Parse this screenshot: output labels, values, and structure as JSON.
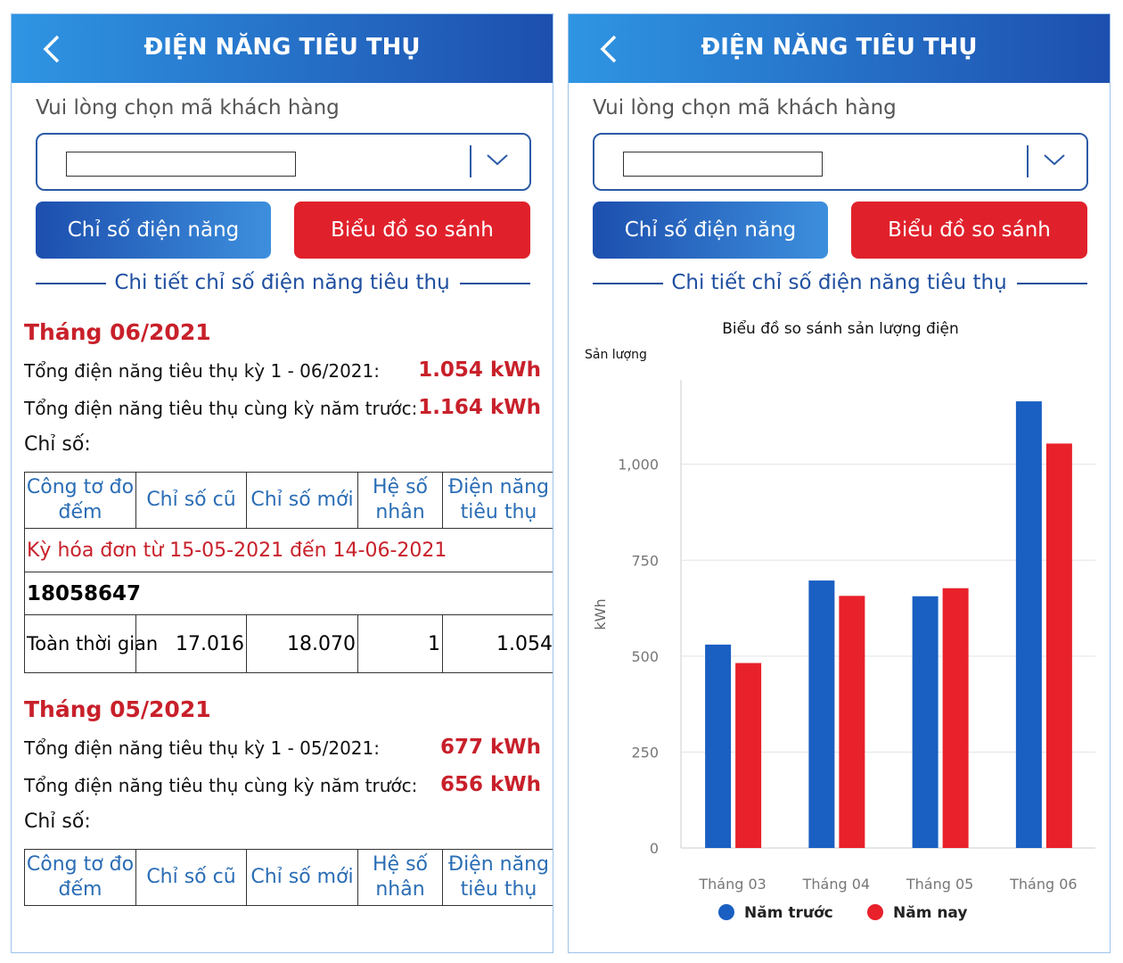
{
  "left": {
    "header": {
      "title": "ĐIỆN NĂNG TIÊU THỤ"
    },
    "prompt": "Vui lòng chọn mã khách hàng",
    "buttons": [
      "Chỉ số điện năng",
      "Biểu đồ so sánh"
    ],
    "section_title": "Chi tiết chỉ số điện năng tiêu thụ",
    "months": [
      {
        "title": "Tháng 06/2021",
        "rows": [
          {
            "label": "Tổng điện năng tiêu thụ kỳ 1 - 06/2021:",
            "value": "1.054 kWh"
          },
          {
            "label": "Tổng điện năng tiêu thụ cùng kỳ năm trước:",
            "value": "1.164 kWh"
          }
        ],
        "index_label": "Chỉ số:",
        "table": {
          "headers": [
            "Công tơ đo đếm",
            "Chỉ số cũ",
            "Chỉ số mới",
            "Hệ số nhân",
            "Điện năng tiêu thụ"
          ],
          "period": "Kỳ hóa đơn từ 15-05-2021 đến 14-06-2021",
          "meter": "18058647",
          "row": [
            "Toàn thời gian",
            "17.016",
            "18.070",
            "1",
            "1.054"
          ]
        }
      },
      {
        "title": "Tháng 05/2021",
        "rows": [
          {
            "label": "Tổng điện năng tiêu thụ kỳ 1 - 05/2021:",
            "value": "677 kWh"
          },
          {
            "label": "Tổng điện năng tiêu thụ cùng kỳ năm trước:",
            "value": "656 kWh"
          }
        ],
        "index_label": "Chỉ số:",
        "table": {
          "headers": [
            "Công tơ đo đếm",
            "Chỉ số cũ",
            "Chỉ số mới",
            "Hệ số nhân",
            "Điện năng tiêu thụ"
          ]
        }
      }
    ]
  },
  "right": {
    "header": {
      "title": "ĐIỆN NĂNG TIÊU THỤ"
    },
    "prompt": "Vui lòng chọn mã khách hàng",
    "buttons": [
      "Chỉ số điện năng",
      "Biểu đồ so sánh"
    ],
    "section_title": "Chi tiết chỉ số điện năng tiêu thụ"
  },
  "chart_data": {
    "type": "bar",
    "title": "Biểu đồ so sánh sản lượng điện",
    "subtitle": "Sản lượng",
    "y_label": "kWh",
    "categories": [
      "Tháng 03",
      "Tháng 04",
      "Tháng 05",
      "Tháng 06"
    ],
    "series": [
      {
        "name": "Năm trước",
        "color": "#1a5fc2",
        "values": [
          530,
          697,
          656,
          1164
        ]
      },
      {
        "name": "Năm nay",
        "color": "#e8212b",
        "values": [
          482,
          657,
          677,
          1054
        ]
      }
    ],
    "ylim": [
      0,
      1220
    ],
    "yticks": [
      0,
      250,
      500,
      750,
      {
        "value": 1000,
        "label": "1,000"
      }
    ],
    "grid": true,
    "legend": "bottom"
  }
}
